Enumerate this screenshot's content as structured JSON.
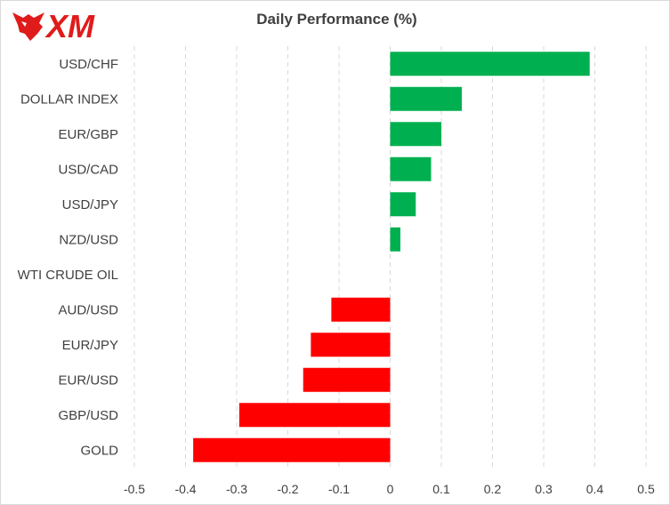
{
  "logo": {
    "text": "XM",
    "icon": "xm-bull-logo-icon",
    "color": "#e01b1b"
  },
  "chart_data": {
    "type": "bar",
    "orientation": "horizontal",
    "title": "Daily Performance (%)",
    "categories": [
      "USD/CHF",
      "DOLLAR INDEX",
      "EUR/GBP",
      "USD/CAD",
      "USD/JPY",
      "NZD/USD",
      "WTI CRUDE OIL",
      "AUD/USD",
      "EUR/JPY",
      "EUR/USD",
      "GBP/USD",
      "GOLD"
    ],
    "values": [
      0.39,
      0.14,
      0.1,
      0.08,
      0.05,
      0.02,
      0.0,
      -0.115,
      -0.155,
      -0.17,
      -0.295,
      -0.385
    ],
    "xlim": [
      -0.5,
      0.5
    ],
    "xticks": [
      "-0.5",
      "-0.4",
      "-0.3",
      "-0.2",
      "-0.1",
      "0",
      "0.1",
      "0.2",
      "0.3",
      "0.4",
      "0.5"
    ],
    "grid": "vertical-dashed",
    "colors": {
      "positive": "#00b050",
      "negative": "#ff0000",
      "grid": "#d9d9d9",
      "text": "#404040"
    }
  }
}
